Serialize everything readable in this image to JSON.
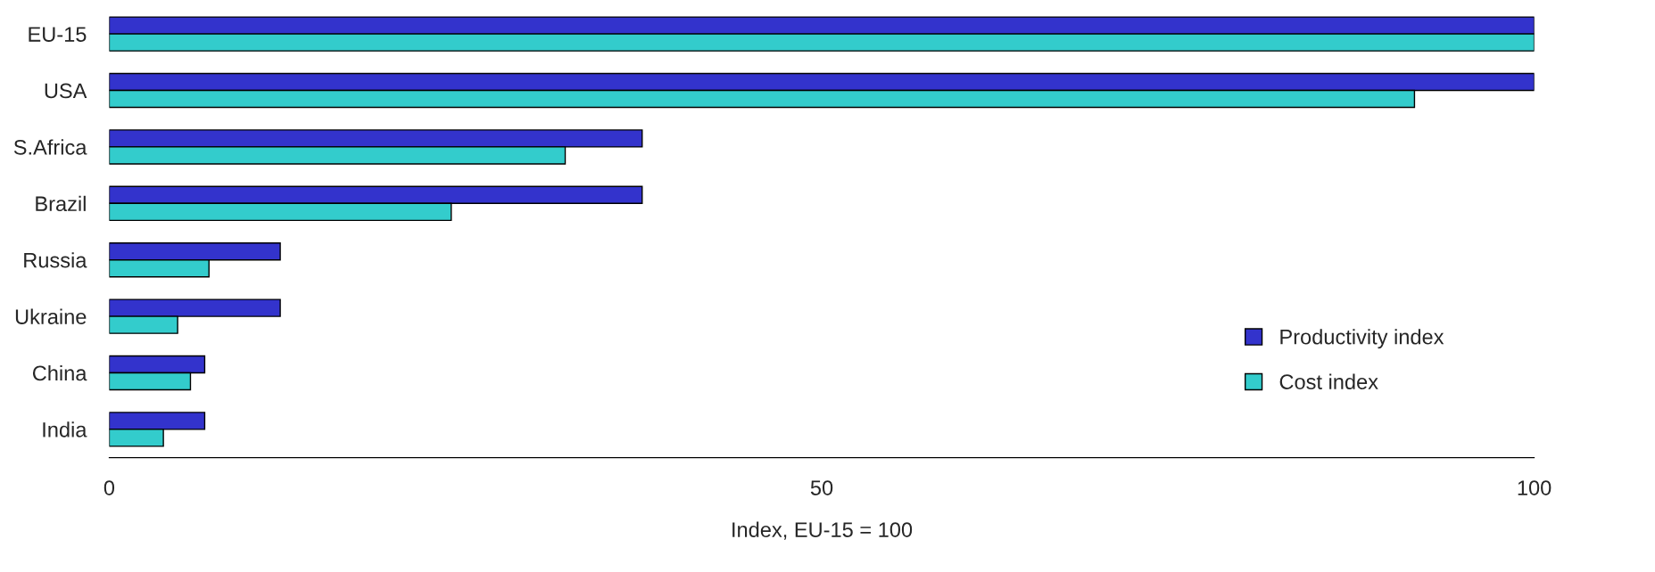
{
  "chart_data": {
    "type": "bar",
    "orientation": "horizontal",
    "xlabel": "Index, EU-15 = 100",
    "categories": [
      "EU-15",
      "USA",
      "S.Africa",
      "Brazil",
      "Russia",
      "Ukraine",
      "China",
      "India"
    ],
    "series": [
      {
        "name": "Productivity index",
        "color": "#3333cc",
        "values": [
          100,
          100,
          37.4,
          37.4,
          12.0,
          12.0,
          6.7,
          6.7
        ]
      },
      {
        "name": "Cost index",
        "color": "#33cccc",
        "values": [
          100,
          91.6,
          32.0,
          24.0,
          7.0,
          4.8,
          5.7,
          3.8
        ]
      }
    ],
    "xlim": [
      0,
      100
    ],
    "xticks": [
      0,
      50,
      100
    ],
    "grid": false,
    "legend": "bottom right"
  }
}
